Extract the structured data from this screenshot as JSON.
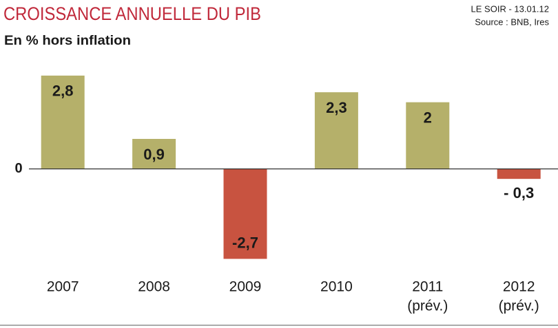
{
  "chart_data": {
    "type": "bar",
    "title": "CROISSANCE ANNUELLE DU PIB",
    "subtitle": "En % hors inflation",
    "source": [
      "LE SOIR - 13.01.12",
      "Source : BNB, Ires"
    ],
    "categories": [
      "2007",
      "2008",
      "2009",
      "2010",
      "2011",
      "2012"
    ],
    "category_notes": [
      null,
      null,
      null,
      null,
      "(prév.)",
      "(prév.)"
    ],
    "values": [
      2.8,
      0.9,
      -2.7,
      2.3,
      2,
      -0.3
    ],
    "value_labels": [
      "2,8",
      "0,9",
      "-2,7",
      "2,3",
      "2",
      "- 0,3"
    ],
    "colors": [
      "#b5b06a",
      "#b5b06a",
      "#c85340",
      "#b5b06a",
      "#b5b06a",
      "#c85340"
    ],
    "ylim": [
      -3,
      3.5
    ],
    "yticks": [
      0
    ],
    "grid": false
  }
}
